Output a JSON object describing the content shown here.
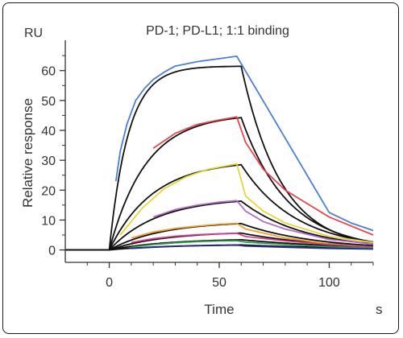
{
  "chart_data": {
    "type": "line",
    "title": "PD-1; PD-L1; 1:1 binding",
    "xlabel": "Time",
    "xunit": "s",
    "ylabel": "Relative response",
    "yunit": "RU",
    "xlim": [
      -20,
      120
    ],
    "ylim": [
      -2,
      68
    ],
    "xticks": [
      0,
      50,
      100
    ],
    "yticks": [
      0,
      10,
      20,
      30,
      40,
      50,
      60
    ],
    "grid": false,
    "legend": "none",
    "injection_start": 0,
    "injection_end": 60,
    "series": [
      {
        "color": "#4a7fd4",
        "values": [
          [
            3,
            23
          ],
          [
            5,
            33
          ],
          [
            8,
            42
          ],
          [
            12,
            50
          ],
          [
            16,
            54
          ],
          [
            20,
            57
          ],
          [
            25,
            59.5
          ],
          [
            30,
            61.5
          ],
          [
            40,
            63
          ],
          [
            50,
            64
          ],
          [
            58,
            64.8
          ],
          [
            100,
            12.5
          ],
          [
            110,
            9
          ],
          [
            120,
            6.5
          ]
        ]
      },
      {
        "color": "#e8474f",
        "values": [
          [
            20,
            34
          ],
          [
            30,
            39
          ],
          [
            40,
            42
          ],
          [
            50,
            43.5
          ],
          [
            58,
            44.5
          ],
          [
            62,
            36
          ],
          [
            70,
            27
          ],
          [
            80,
            20
          ],
          [
            100,
            11
          ],
          [
            120,
            5
          ]
        ]
      },
      {
        "color": "#e8d43a",
        "values": [
          [
            5,
            5
          ],
          [
            15,
            14
          ],
          [
            25,
            20.5
          ],
          [
            35,
            24.5
          ],
          [
            45,
            27
          ],
          [
            58,
            28.8
          ],
          [
            62,
            18
          ],
          [
            70,
            13
          ],
          [
            80,
            9
          ],
          [
            100,
            4.5
          ],
          [
            120,
            2.5
          ]
        ]
      },
      {
        "color": "#b26cc6",
        "values": [
          [
            20,
            11
          ],
          [
            30,
            13.5
          ],
          [
            40,
            15
          ],
          [
            50,
            16
          ],
          [
            58,
            16.5
          ],
          [
            62,
            13
          ],
          [
            70,
            9.5
          ],
          [
            80,
            7
          ],
          [
            100,
            3.5
          ],
          [
            120,
            2
          ]
        ]
      },
      {
        "color": "#f0a030",
        "values": [
          [
            10,
            4
          ],
          [
            20,
            6
          ],
          [
            30,
            7.2
          ],
          [
            40,
            8
          ],
          [
            50,
            8.6
          ],
          [
            58,
            8.9
          ],
          [
            62,
            7
          ],
          [
            80,
            4
          ],
          [
            100,
            2
          ],
          [
            120,
            1
          ]
        ]
      },
      {
        "color": "#d9408a",
        "values": [
          [
            10,
            2.5
          ],
          [
            20,
            3.8
          ],
          [
            30,
            4.6
          ],
          [
            40,
            5.1
          ],
          [
            50,
            5.4
          ],
          [
            58,
            5.6
          ],
          [
            62,
            4.5
          ],
          [
            80,
            3
          ],
          [
            100,
            1.8
          ],
          [
            120,
            1
          ]
        ]
      },
      {
        "color": "#2e9a48",
        "values": [
          [
            10,
            1
          ],
          [
            20,
            1.8
          ],
          [
            30,
            2.4
          ],
          [
            40,
            2.8
          ],
          [
            50,
            3
          ],
          [
            58,
            3.1
          ],
          [
            62,
            2.6
          ],
          [
            80,
            1.8
          ],
          [
            100,
            1.1
          ],
          [
            120,
            0.6
          ]
        ]
      },
      {
        "color": "#2a2a8a",
        "values": [
          [
            10,
            0.5
          ],
          [
            20,
            0.9
          ],
          [
            30,
            1.2
          ],
          [
            40,
            1.4
          ],
          [
            50,
            1.5
          ],
          [
            58,
            1.6
          ],
          [
            62,
            1.3
          ],
          [
            80,
            0.9
          ],
          [
            100,
            0.5
          ],
          [
            120,
            0.3
          ]
        ]
      }
    ],
    "fits": [
      {
        "rmax": 61.5,
        "kobs": 0.115,
        "kd": 0.055
      },
      {
        "rmax": 45.5,
        "kobs": 0.06,
        "kd": 0.047
      },
      {
        "rmax": 30.0,
        "kobs": 0.05,
        "kd": 0.04
      },
      {
        "rmax": 17.5,
        "kobs": 0.045,
        "kd": 0.035
      },
      {
        "rmax": 9.6,
        "kobs": 0.042,
        "kd": 0.03
      },
      {
        "rmax": 6.2,
        "kobs": 0.04,
        "kd": 0.025
      },
      {
        "rmax": 3.8,
        "kobs": 0.038,
        "kd": 0.02
      },
      {
        "rmax": 1.9,
        "kobs": 0.036,
        "kd": 0.018
      }
    ]
  }
}
